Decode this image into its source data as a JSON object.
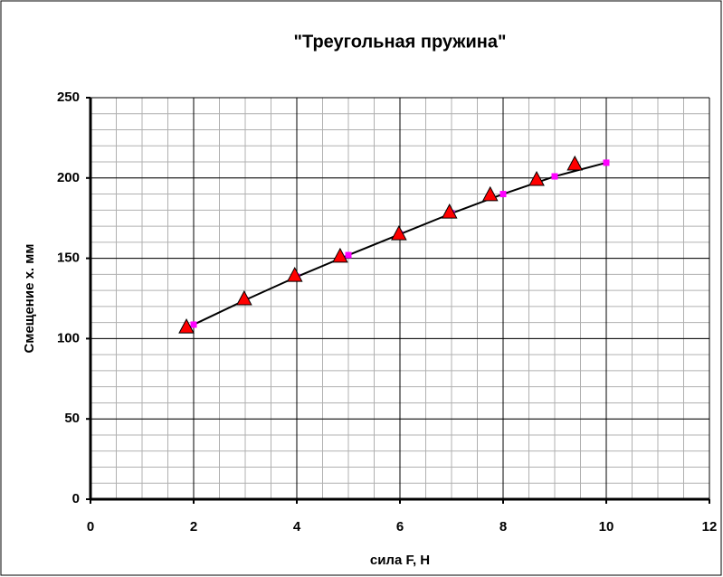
{
  "chart_data": {
    "type": "scatter",
    "title": "\"Треугольная пружина\"",
    "xlabel": "сила F, Н",
    "ylabel": "Смещение x. мм",
    "xlim": [
      0,
      12
    ],
    "xticks": [
      0,
      2,
      4,
      6,
      8,
      10,
      12
    ],
    "ylim": [
      0,
      250
    ],
    "yticks": [
      0,
      50,
      100,
      150,
      200,
      250
    ],
    "grid": true,
    "xminor": 0.5,
    "yminor": 10,
    "series": [
      {
        "color": "#ff0000",
        "marker": "triangle",
        "line": false,
        "x": [
          1.86,
          2.98,
          3.96,
          4.84,
          5.98,
          6.96,
          7.75,
          8.65,
          9.39
        ],
        "values": [
          107.5,
          125,
          139.6,
          151.5,
          165.5,
          179,
          189.8,
          199.3,
          208.9
        ]
      },
      {
        "color": "#ff00ff",
        "marker": "square",
        "line": true,
        "x": [
          2,
          3,
          4,
          5,
          6,
          7,
          8,
          9,
          10
        ],
        "values": [
          108.7,
          124,
          138.5,
          152,
          165,
          178,
          190,
          201,
          209.5
        ]
      }
    ]
  }
}
